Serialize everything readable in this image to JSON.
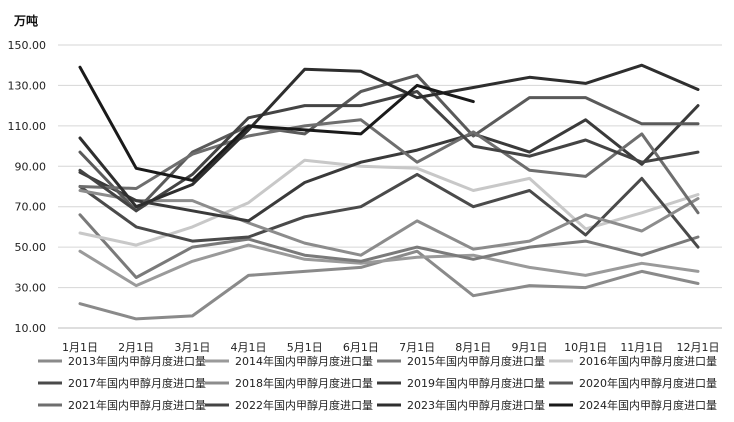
{
  "chart_data": {
    "type": "line",
    "unit_label": "万吨",
    "ylim": [
      10,
      150
    ],
    "yticks": [
      "10.00",
      "30.00",
      "50.00",
      "70.00",
      "90.00",
      "110.00",
      "130.00",
      "150.00"
    ],
    "categories": [
      "1月1日",
      "2月1日",
      "3月1日",
      "4月1日",
      "5月1日",
      "6月1日",
      "7月1日",
      "8月1日",
      "9月1日",
      "10月1日",
      "11月1日",
      "12月1日"
    ],
    "grid": true,
    "legend_position": "bottom",
    "series": [
      {
        "name": "2013年国内甲醇月度进口量",
        "color": "#8a8a8a",
        "values": [
          22,
          14.5,
          16,
          36,
          38,
          40,
          48,
          26,
          31,
          30,
          38,
          32
        ]
      },
      {
        "name": "2014年国内甲醇月度进口量",
        "color": "#9a9a9a",
        "values": [
          48,
          31,
          43,
          51,
          44,
          42,
          45,
          46,
          40,
          36,
          42,
          38
        ]
      },
      {
        "name": "2015年国内甲醇月度进口量",
        "color": "#7a7a7a",
        "values": [
          66,
          35,
          50,
          54,
          46,
          43,
          50,
          44,
          50,
          53,
          46,
          55
        ]
      },
      {
        "name": "2016年国内甲醇月度进口量",
        "color": "#c8c8c8",
        "values": [
          57,
          51,
          60,
          72,
          93,
          90,
          89,
          78,
          84,
          59,
          67,
          76
        ]
      },
      {
        "name": "2017年国内甲醇月度进口量",
        "color": "#4a4a4a",
        "values": [
          80,
          60,
          53,
          55,
          65,
          70,
          86,
          70,
          78,
          56,
          84,
          50
        ]
      },
      {
        "name": "2018年国内甲醇月度进口量",
        "color": "#8c8c8c",
        "values": [
          78,
          73,
          73,
          62,
          52,
          46,
          63,
          49,
          53,
          66,
          58,
          74
        ]
      },
      {
        "name": "2019年国内甲醇月度进口量",
        "color": "#3a3a3a",
        "values": [
          87,
          73,
          68,
          63,
          82,
          92,
          98,
          106,
          97,
          113,
          91,
          120
        ]
      },
      {
        "name": "2020年国内甲醇月度进口量",
        "color": "#5a5a5a",
        "values": [
          97,
          68,
          97,
          110,
          106,
          127,
          135,
          105,
          124,
          124,
          111,
          111
        ]
      },
      {
        "name": "2021年国内甲醇月度进口量",
        "color": "#6e6e6e",
        "values": [
          80,
          79,
          96,
          105,
          110,
          113,
          92,
          107,
          88,
          85,
          106,
          67
        ]
      },
      {
        "name": "2022年国内甲醇月度进口量",
        "color": "#444444",
        "values": [
          88,
          68,
          86,
          114,
          120,
          120,
          127,
          100,
          95,
          103,
          92,
          97
        ]
      },
      {
        "name": "2023年国内甲醇月度进口量",
        "color": "#2e2e2e",
        "values": [
          104,
          70,
          81,
          108,
          138,
          137,
          124,
          129,
          134,
          131,
          140,
          128
        ]
      },
      {
        "name": "2024年国内甲醇月度进口量",
        "color": "#1a1a1a",
        "values": [
          139,
          89,
          83,
          110,
          108,
          106,
          130,
          122,
          null,
          null,
          null,
          null
        ]
      }
    ]
  }
}
